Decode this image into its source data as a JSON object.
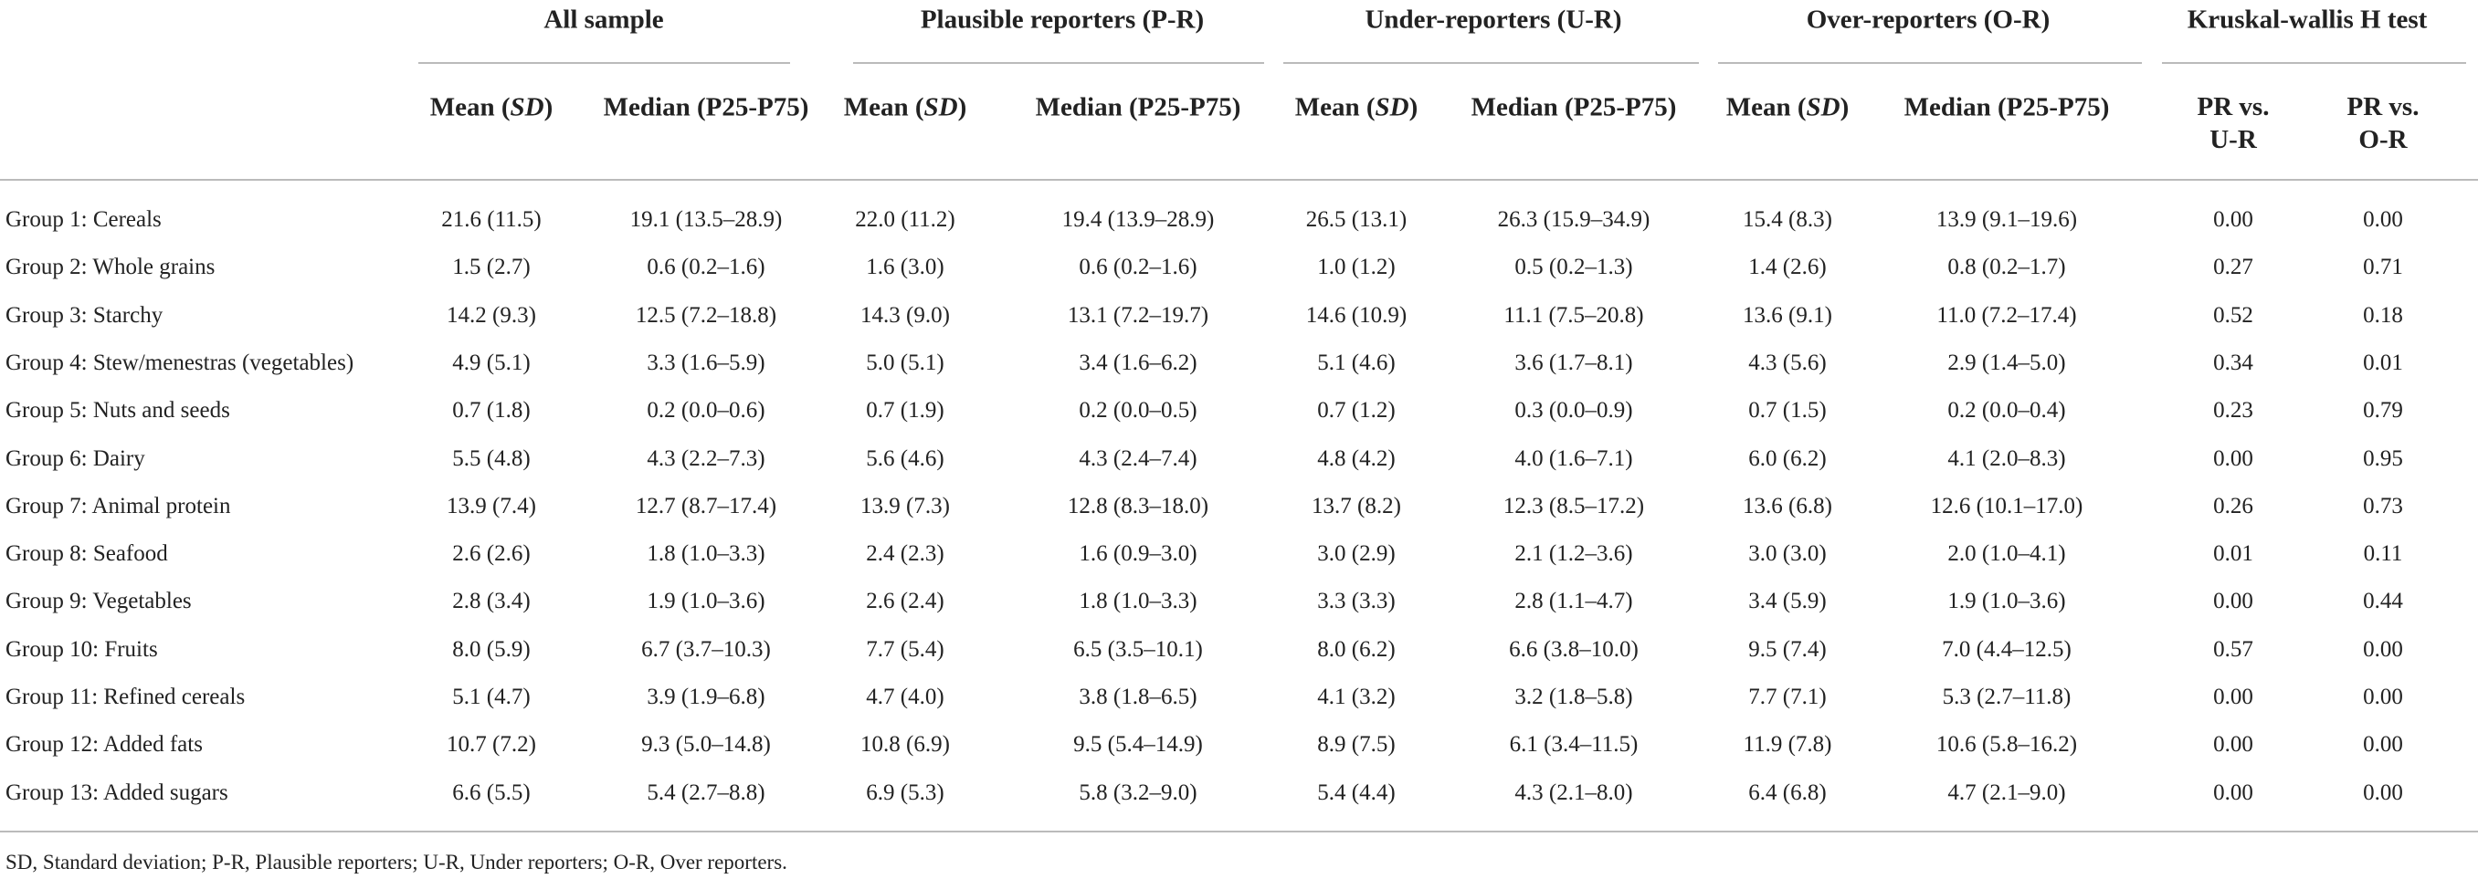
{
  "header": {
    "groups": [
      "All sample",
      "Plausible reporters (P-R)",
      "Under-reporters (U-R)",
      "Over-reporters (O-R)",
      "Kruskal-wallis H test"
    ],
    "mean_sd": {
      "pre": "Mean (",
      "em": "SD",
      "post": ")"
    },
    "median": "Median (P25-P75)",
    "kw": [
      "PR vs. U-R",
      "PR vs. O-R"
    ]
  },
  "table": {
    "rows": [
      [
        "Group 1: Cereals",
        "21.6 (11.5)",
        "19.1 (13.5–28.9)",
        "22.0 (11.2)",
        "19.4 (13.9–28.9)",
        "26.5 (13.1)",
        "26.3 (15.9–34.9)",
        "15.4 (8.3)",
        "13.9 (9.1–19.6)",
        "0.00",
        "0.00"
      ],
      [
        "Group 2: Whole grains",
        "1.5 (2.7)",
        "0.6 (0.2–1.6)",
        "1.6 (3.0)",
        "0.6 (0.2–1.6)",
        "1.0 (1.2)",
        "0.5 (0.2–1.3)",
        "1.4 (2.6)",
        "0.8 (0.2–1.7)",
        "0.27",
        "0.71"
      ],
      [
        "Group 3: Starchy",
        "14.2 (9.3)",
        "12.5 (7.2–18.8)",
        "14.3 (9.0)",
        "13.1 (7.2–19.7)",
        "14.6 (10.9)",
        "11.1 (7.5–20.8)",
        "13.6 (9.1)",
        "11.0 (7.2–17.4)",
        "0.52",
        "0.18"
      ],
      [
        "Group 4: Stew/menestras (vegetables)",
        "4.9 (5.1)",
        "3.3 (1.6–5.9)",
        "5.0 (5.1)",
        "3.4 (1.6–6.2)",
        "5.1 (4.6)",
        "3.6 (1.7–8.1)",
        "4.3 (5.6)",
        "2.9 (1.4–5.0)",
        "0.34",
        "0.01"
      ],
      [
        "Group 5: Nuts and seeds",
        "0.7 (1.8)",
        "0.2 (0.0–0.6)",
        "0.7 (1.9)",
        "0.2 (0.0–0.5)",
        "0.7 (1.2)",
        "0.3 (0.0–0.9)",
        "0.7 (1.5)",
        "0.2 (0.0–0.4)",
        "0.23",
        "0.79"
      ],
      [
        "Group 6: Dairy",
        "5.5 (4.8)",
        "4.3 (2.2–7.3)",
        "5.6 (4.6)",
        "4.3 (2.4–7.4)",
        "4.8 (4.2)",
        "4.0 (1.6–7.1)",
        "6.0 (6.2)",
        "4.1 (2.0–8.3)",
        "0.00",
        "0.95"
      ],
      [
        "Group 7: Animal protein",
        "13.9 (7.4)",
        "12.7 (8.7–17.4)",
        "13.9 (7.3)",
        "12.8 (8.3–18.0)",
        "13.7 (8.2)",
        "12.3 (8.5–17.2)",
        "13.6 (6.8)",
        "12.6 (10.1–17.0)",
        "0.26",
        "0.73"
      ],
      [
        "Group 8: Seafood",
        "2.6 (2.6)",
        "1.8 (1.0–3.3)",
        "2.4 (2.3)",
        "1.6 (0.9–3.0)",
        "3.0 (2.9)",
        "2.1 (1.2–3.6)",
        "3.0 (3.0)",
        "2.0 (1.0–4.1)",
        "0.01",
        "0.11"
      ],
      [
        "Group 9: Vegetables",
        "2.8 (3.4)",
        "1.9 (1.0–3.6)",
        "2.6 (2.4)",
        "1.8 (1.0–3.3)",
        "3.3 (3.3)",
        "2.8 (1.1–4.7)",
        "3.4 (5.9)",
        "1.9 (1.0–3.6)",
        "0.00",
        "0.44"
      ],
      [
        "Group 10: Fruits",
        "8.0 (5.9)",
        "6.7 (3.7–10.3)",
        "7.7 (5.4)",
        "6.5 (3.5–10.1)",
        "8.0 (6.2)",
        "6.6 (3.8–10.0)",
        "9.5 (7.4)",
        "7.0 (4.4–12.5)",
        "0.57",
        "0.00"
      ],
      [
        "Group 11: Refined cereals",
        "5.1 (4.7)",
        "3.9 (1.9–6.8)",
        "4.7 (4.0)",
        "3.8 (1.8–6.5)",
        "4.1 (3.2)",
        "3.2 (1.8–5.8)",
        "7.7 (7.1)",
        "5.3 (2.7–11.8)",
        "0.00",
        "0.00"
      ],
      [
        "Group 12: Added fats",
        "10.7 (7.2)",
        "9.3 (5.0–14.8)",
        "10.8 (6.9)",
        "9.5 (5.4–14.9)",
        "8.9 (7.5)",
        "6.1 (3.4–11.5)",
        "11.9 (7.8)",
        "10.6 (5.8–16.2)",
        "0.00",
        "0.00"
      ],
      [
        "Group 13: Added sugars",
        "6.6 (5.5)",
        "5.4 (2.7–8.8)",
        "6.9 (5.3)",
        "5.8 (3.2–9.0)",
        "5.4 (4.4)",
        "4.3 (2.1–8.0)",
        "6.4 (6.8)",
        "4.7 (2.1–9.0)",
        "0.00",
        "0.00"
      ]
    ]
  },
  "footnote": "SD, Standard deviation; P-R, Plausible reporters; U-R, Under reporters; O-R, Over reporters."
}
